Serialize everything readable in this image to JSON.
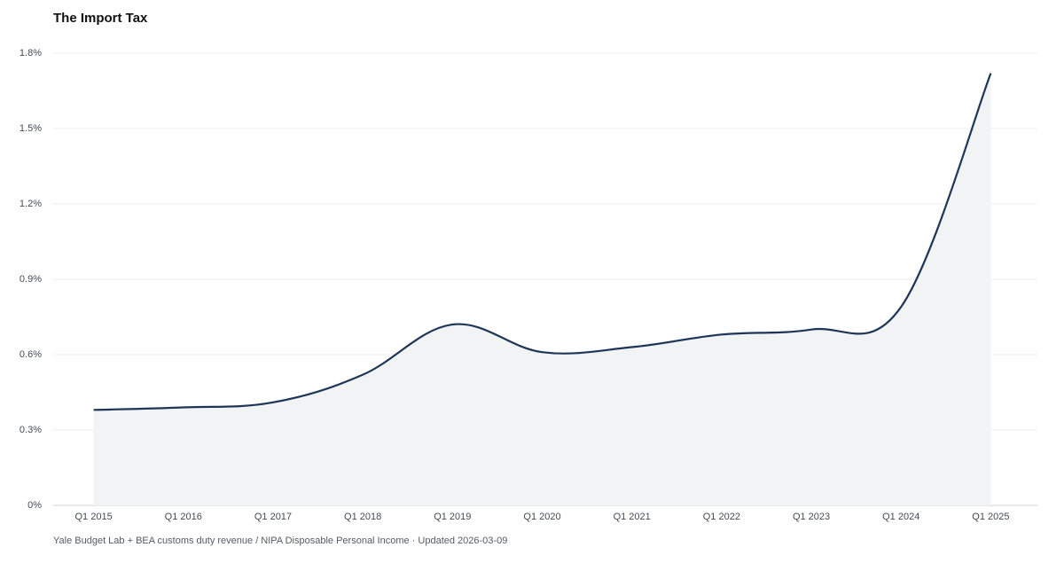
{
  "chart_data": {
    "type": "area-line",
    "title": "The Import Tax",
    "source": "Yale Budget Lab + BEA customs duty revenue / NIPA Disposable Personal Income · Updated 2026-03-09",
    "categories": [
      "Q1 2015",
      "Q1 2016",
      "Q1 2017",
      "Q1 2018",
      "Q1 2019",
      "Q1 2020",
      "Q1 2021",
      "Q1 2022",
      "Q1 2023",
      "Q1 2024",
      "Q1 2025"
    ],
    "values": [
      0.38,
      0.39,
      0.41,
      0.52,
      0.72,
      0.61,
      0.63,
      0.68,
      0.7,
      0.79,
      1.72
    ],
    "color": "#1f3557",
    "fill": "#f2f3f5",
    "ylim": [
      0,
      1.8
    ],
    "yticks": [
      {
        "value": 0,
        "label": "0%"
      },
      {
        "value": 0.3,
        "label": "0.3%"
      },
      {
        "value": 0.6,
        "label": "0.6%"
      },
      {
        "value": 0.9,
        "label": "0.9%"
      },
      {
        "value": 1.2,
        "label": "1.2%"
      },
      {
        "value": 1.5,
        "label": "1.5%"
      },
      {
        "value": 1.8,
        "label": "1.8%"
      }
    ],
    "grid": true
  }
}
